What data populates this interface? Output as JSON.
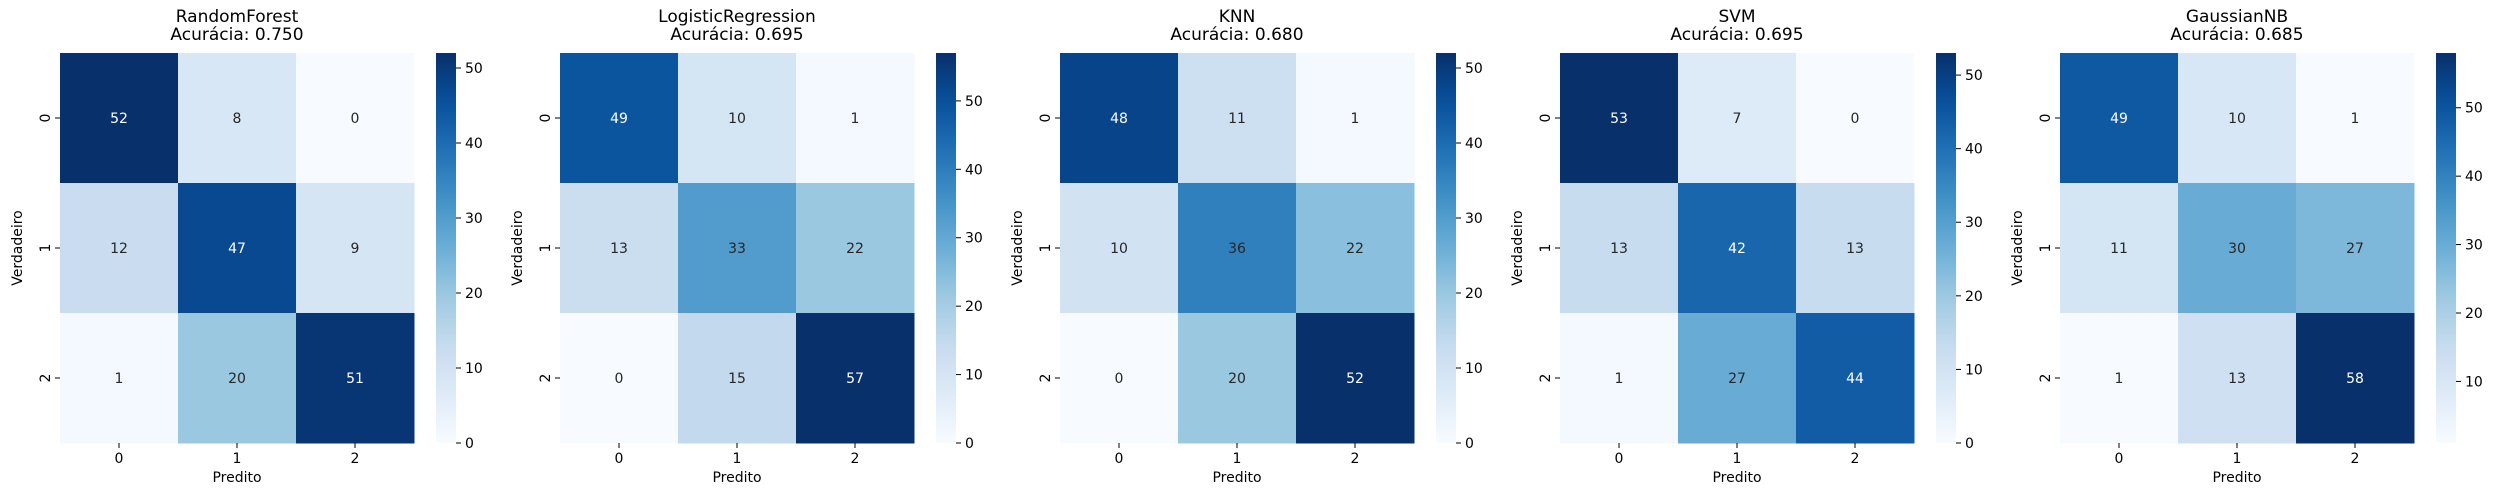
{
  "chart_data": [
    {
      "type": "heatmap",
      "title": "RandomForest",
      "subtitle": "Acurácia: 0.750",
      "xlabel": "Predito",
      "ylabel": "Verdadeiro",
      "x_categories": [
        "0",
        "1",
        "2"
      ],
      "y_categories": [
        "0",
        "1",
        "2"
      ],
      "values": [
        [
          52,
          8,
          0
        ],
        [
          12,
          47,
          9
        ],
        [
          1,
          20,
          51
        ]
      ],
      "colorbar": {
        "min": 0,
        "max": 52,
        "ticks": [
          0,
          10,
          20,
          30,
          40,
          50
        ]
      },
      "colormap": "Blues"
    },
    {
      "type": "heatmap",
      "title": "LogisticRegression",
      "subtitle": "Acurácia: 0.695",
      "xlabel": "Predito",
      "ylabel": "Verdadeiro",
      "x_categories": [
        "0",
        "1",
        "2"
      ],
      "y_categories": [
        "0",
        "1",
        "2"
      ],
      "values": [
        [
          49,
          10,
          1
        ],
        [
          13,
          33,
          22
        ],
        [
          0,
          15,
          57
        ]
      ],
      "colorbar": {
        "min": 0,
        "max": 57,
        "ticks": [
          0,
          10,
          20,
          30,
          40,
          50
        ]
      },
      "colormap": "Blues"
    },
    {
      "type": "heatmap",
      "title": "KNN",
      "subtitle": "Acurácia: 0.680",
      "xlabel": "Predito",
      "ylabel": "Verdadeiro",
      "x_categories": [
        "0",
        "1",
        "2"
      ],
      "y_categories": [
        "0",
        "1",
        "2"
      ],
      "values": [
        [
          48,
          11,
          1
        ],
        [
          10,
          36,
          22
        ],
        [
          0,
          20,
          52
        ]
      ],
      "colorbar": {
        "min": 0,
        "max": 52,
        "ticks": [
          0,
          10,
          20,
          30,
          40,
          50
        ]
      },
      "colormap": "Blues"
    },
    {
      "type": "heatmap",
      "title": "SVM",
      "subtitle": "Acurácia: 0.695",
      "xlabel": "Predito",
      "ylabel": "Verdadeiro",
      "x_categories": [
        "0",
        "1",
        "2"
      ],
      "y_categories": [
        "0",
        "1",
        "2"
      ],
      "values": [
        [
          53,
          7,
          0
        ],
        [
          13,
          42,
          13
        ],
        [
          1,
          27,
          44
        ]
      ],
      "colorbar": {
        "min": 0,
        "max": 53,
        "ticks": [
          0,
          10,
          20,
          30,
          40,
          50
        ]
      },
      "colormap": "Blues"
    },
    {
      "type": "heatmap",
      "title": "GaussianNB",
      "subtitle": "Acurácia: 0.685",
      "xlabel": "Predito",
      "ylabel": "Verdadeiro",
      "x_categories": [
        "0",
        "1",
        "2"
      ],
      "y_categories": [
        "0",
        "1",
        "2"
      ],
      "values": [
        [
          49,
          10,
          1
        ],
        [
          11,
          30,
          27
        ],
        [
          1,
          13,
          58
        ]
      ],
      "colorbar": {
        "min": 1,
        "max": 58,
        "ticks": [
          10,
          20,
          30,
          40,
          50
        ]
      },
      "colormap": "Blues"
    }
  ]
}
